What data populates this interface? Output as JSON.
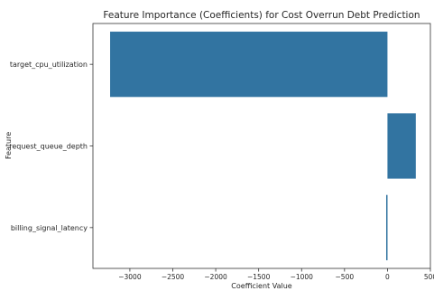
{
  "chart_data": {
    "type": "bar",
    "orientation": "horizontal",
    "title": "Feature Importance (Coefficients) for Cost Overrun Debt Prediction",
    "xlabel": "Coefficient Value",
    "ylabel": "Feature",
    "categories": [
      "target_cpu_utilization",
      "request_queue_depth",
      "billing_signal_latency"
    ],
    "values": [
      -3230,
      330,
      -15
    ],
    "xlim": [
      -3430,
      500
    ],
    "xticks": [
      -3000,
      -2500,
      -2000,
      -1500,
      -1000,
      -500,
      0,
      500
    ],
    "xtick_labels": [
      "−3000",
      "−2500",
      "−2000",
      "−1500",
      "−1000",
      "−500",
      "0",
      "500"
    ],
    "grid": false,
    "bar_color": "#3274a1"
  }
}
